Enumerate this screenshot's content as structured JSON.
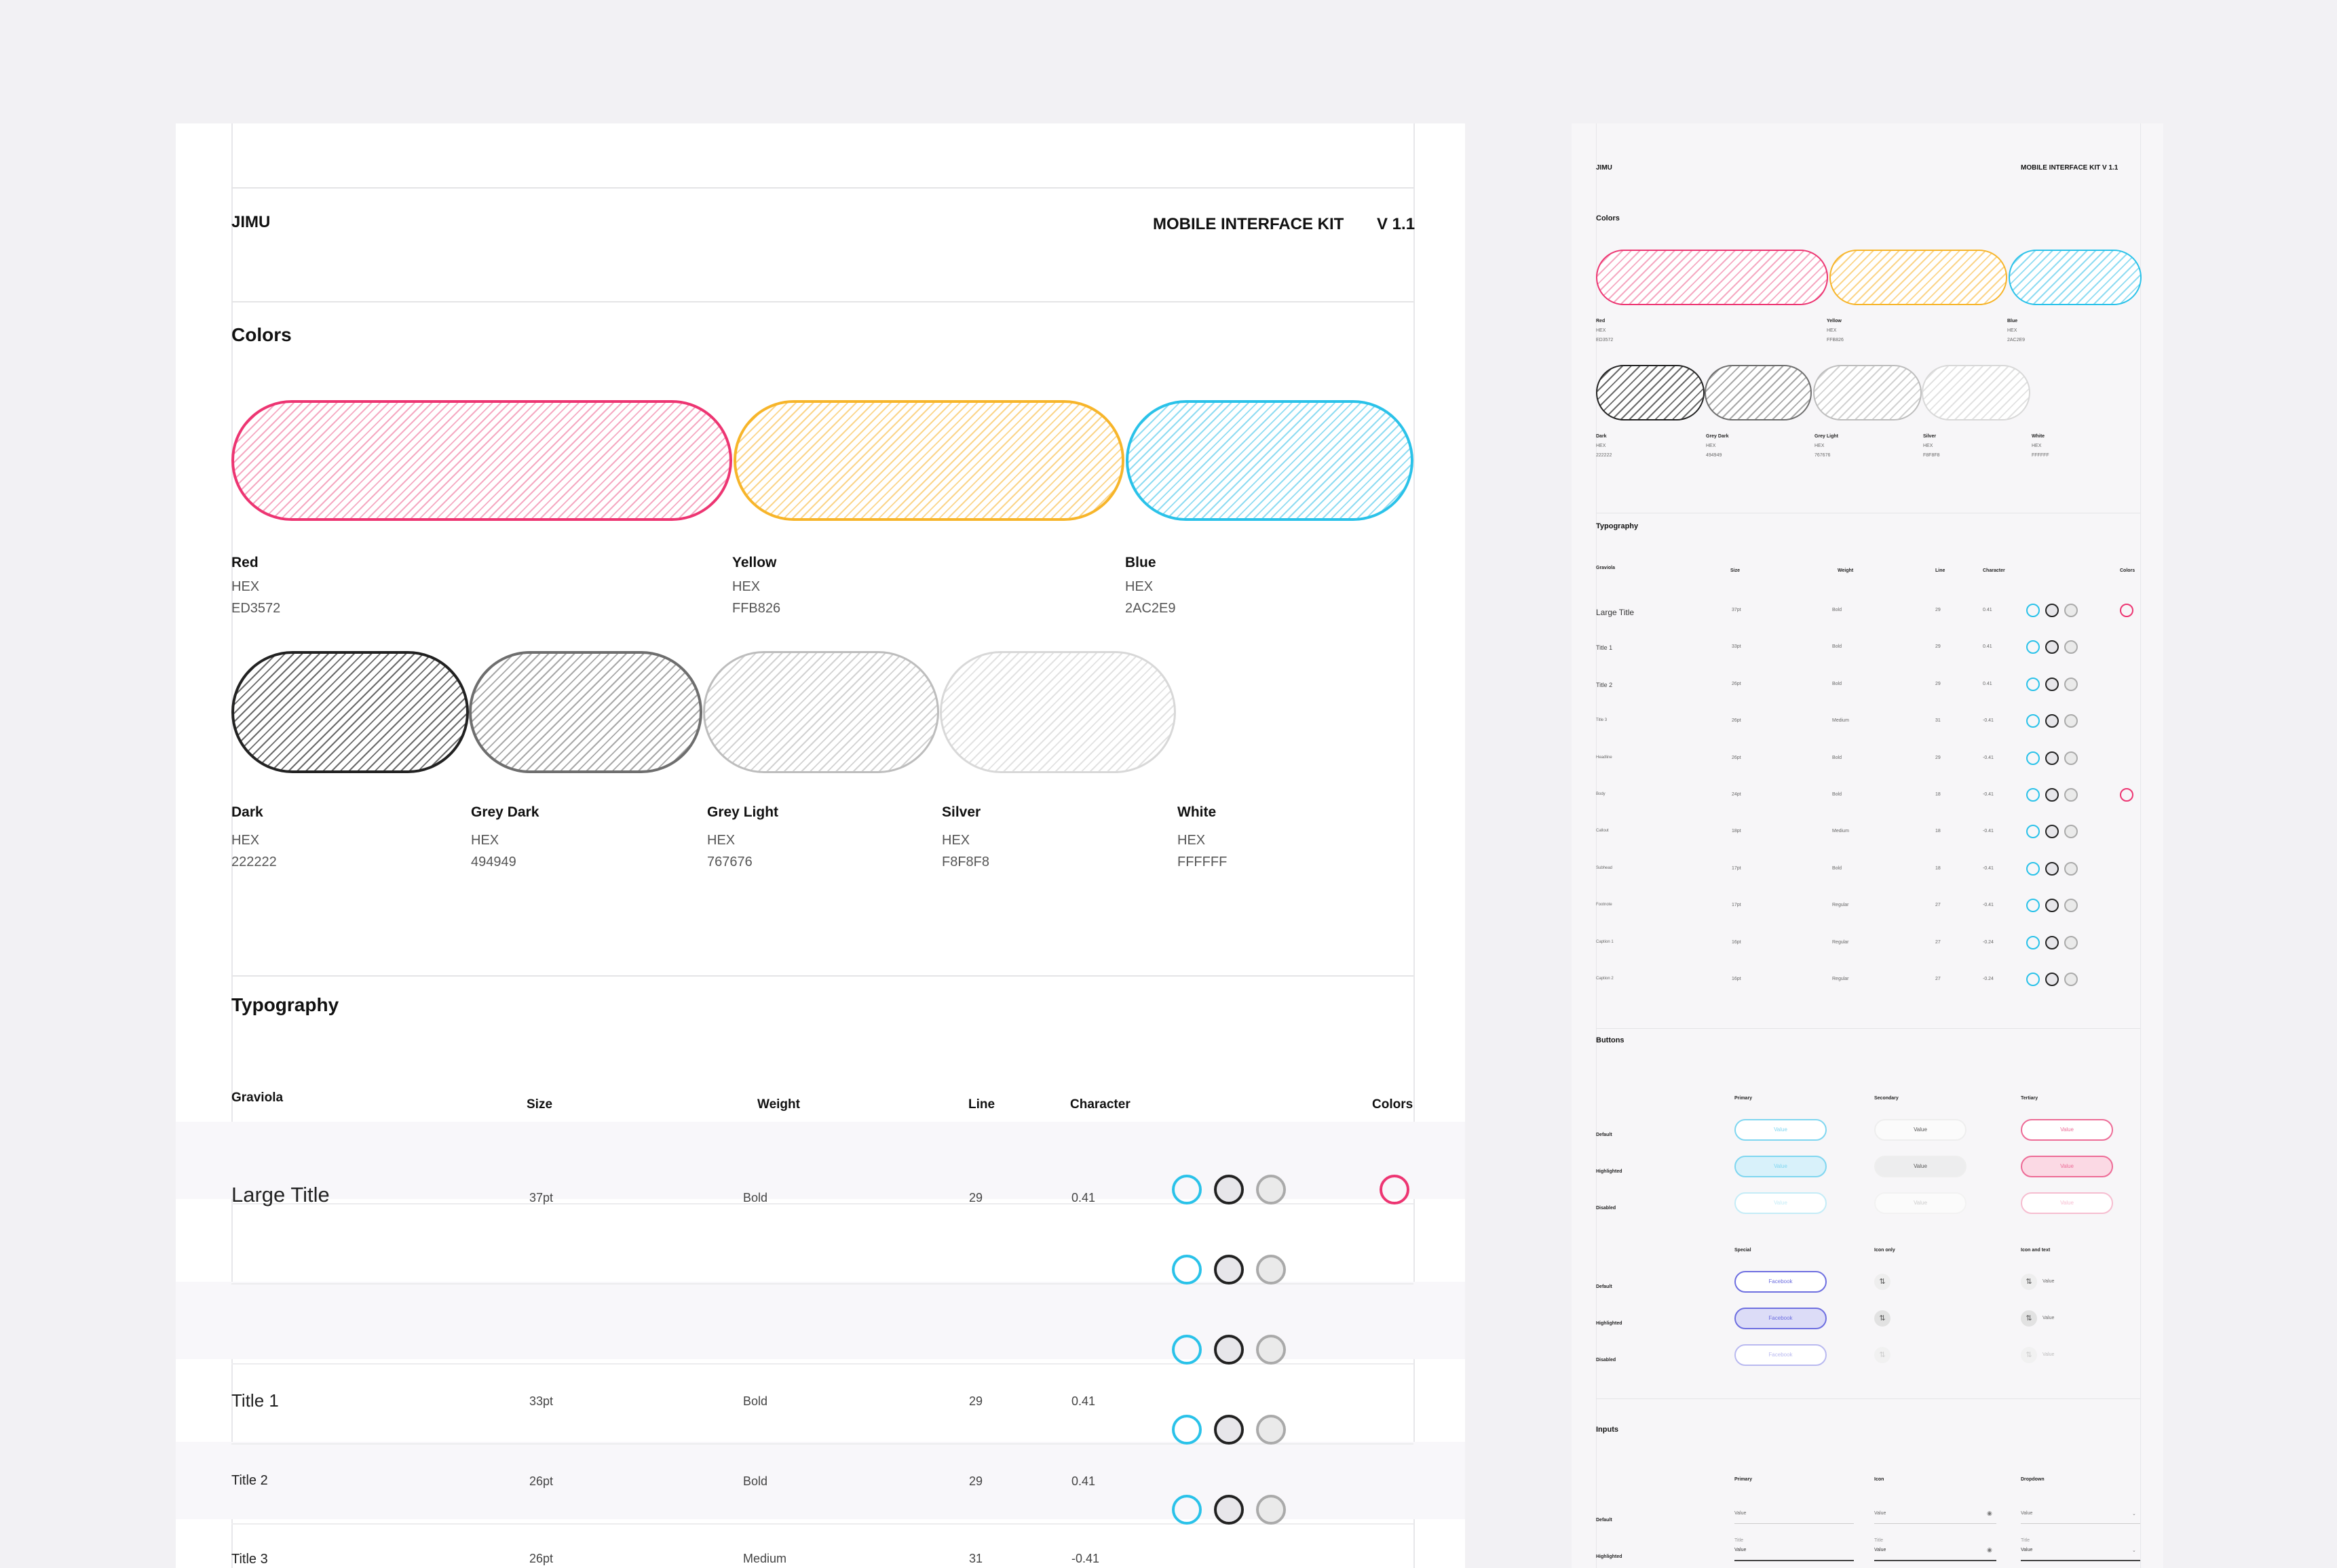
{
  "big": {
    "brand": "JIMU",
    "kit": "MOBILE INTERFACE  KIT",
    "version": "V 1.1",
    "colors_heading": "Colors",
    "typography_heading": "Typography"
  },
  "palette": {
    "primary": [
      {
        "name": "Red",
        "hex_label": "HEX",
        "hex": "ED3572",
        "stroke": "#ed3572",
        "fill": "#fde3ec"
      },
      {
        "name": "Yellow",
        "hex_label": "HEX",
        "hex": "FFB826",
        "stroke": "#f7b52a",
        "fill": "#fff1d6"
      },
      {
        "name": "Blue",
        "hex_label": "HEX",
        "hex": "2AC2E9",
        "stroke": "#2ac2e9",
        "fill": "#dcf3fb"
      }
    ],
    "neutral": [
      {
        "name": "Dark",
        "hex_label": "HEX",
        "hex": "222222",
        "stroke": "#222222",
        "fill": "#d9d9d9"
      },
      {
        "name": "Grey Dark",
        "hex_label": "HEX",
        "hex": "494949",
        "stroke": "#6e6e6e",
        "fill": "#e6e6e6"
      },
      {
        "name": "Grey Light",
        "hex_label": "HEX",
        "hex": "767676",
        "stroke": "#bdbdbd",
        "fill": "#efefef"
      },
      {
        "name": "Silver",
        "hex_label": "HEX",
        "hex": "F8F8F8",
        "stroke": "#d8d8d8",
        "fill": "#f5f5f5"
      },
      {
        "name": "White",
        "hex_label": "HEX",
        "hex": "FFFFFF",
        "stroke": "#ffffff",
        "fill": "#ffffff"
      }
    ]
  },
  "typo": {
    "headers": {
      "family": "Graviola",
      "size": "Size",
      "weight": "Weight",
      "line": "Line",
      "character": "Character",
      "colors": "Colors"
    },
    "rows": [
      {
        "name": "Large Title",
        "size": "37pt",
        "weight": "Bold",
        "line": "29",
        "character": "0.41",
        "accent": true
      },
      {
        "name": "Title 1",
        "size": "33pt",
        "weight": "Bold",
        "line": "29",
        "character": "0.41",
        "accent": false
      },
      {
        "name": "Title 2",
        "size": "26pt",
        "weight": "Bold",
        "line": "29",
        "character": "0.41",
        "accent": false
      },
      {
        "name": "Title 3",
        "size": "26pt",
        "weight": "Medium",
        "line": "31",
        "character": "-0.41",
        "accent": false
      },
      {
        "name": "Headline",
        "size": "26pt",
        "weight": "Bold",
        "line": "29",
        "character": "-0.41",
        "accent": false
      }
    ]
  },
  "small": {
    "brand": "JIMU",
    "kit": "MOBILE INTERFACE  KIT   V 1.1",
    "colors_heading": "Colors",
    "typography_heading": "Typography",
    "buttons_heading": "Buttons",
    "inputs_heading": "Inputs",
    "typo_rows": [
      {
        "name": "Large Title",
        "size": "37pt",
        "weight": "Bold",
        "line": "29",
        "character": "0.41",
        "accent": true
      },
      {
        "name": "Title 1",
        "size": "33pt",
        "weight": "Bold",
        "line": "29",
        "character": "0.41",
        "accent": false
      },
      {
        "name": "Title 2",
        "size": "26pt",
        "weight": "Bold",
        "line": "29",
        "character": "0.41",
        "accent": false
      },
      {
        "name": "Title 3",
        "size": "26pt",
        "weight": "Medium",
        "line": "31",
        "character": "-0.41",
        "accent": false
      },
      {
        "name": "Headline",
        "size": "26pt",
        "weight": "Bold",
        "line": "29",
        "character": "-0.41",
        "accent": false
      },
      {
        "name": "Body",
        "size": "24pt",
        "weight": "Bold",
        "line": "18",
        "character": "-0.41",
        "accent": true
      },
      {
        "name": "Callout",
        "size": "18pt",
        "weight": "Medium",
        "line": "18",
        "character": "-0.41",
        "accent": false
      },
      {
        "name": "Subhead",
        "size": "17pt",
        "weight": "Bold",
        "line": "18",
        "character": "-0.41",
        "accent": false
      },
      {
        "name": "Footnote",
        "size": "17pt",
        "weight": "Regular",
        "line": "27",
        "character": "-0.41",
        "accent": false
      },
      {
        "name": "Caption 1",
        "size": "16pt",
        "weight": "Regular",
        "line": "27",
        "character": "-0.24",
        "accent": false
      },
      {
        "name": "Caption 2",
        "size": "16pt",
        "weight": "Regular",
        "line": "27",
        "character": "-0.24",
        "accent": false
      }
    ],
    "buttons": {
      "cols": [
        "Primary",
        "Secondary",
        "Tertiary"
      ],
      "cols2": [
        "Special",
        "Icon only",
        "Icon and text"
      ],
      "states": [
        "Default",
        "Highlighted",
        "Disabled"
      ],
      "value": "Value",
      "special": "Facebook"
    },
    "inputs": {
      "cols": [
        "Primary",
        "Icon",
        "Dropdown"
      ],
      "states": [
        "Default",
        "Highlighted"
      ],
      "value": "Value",
      "title": "Title"
    }
  }
}
